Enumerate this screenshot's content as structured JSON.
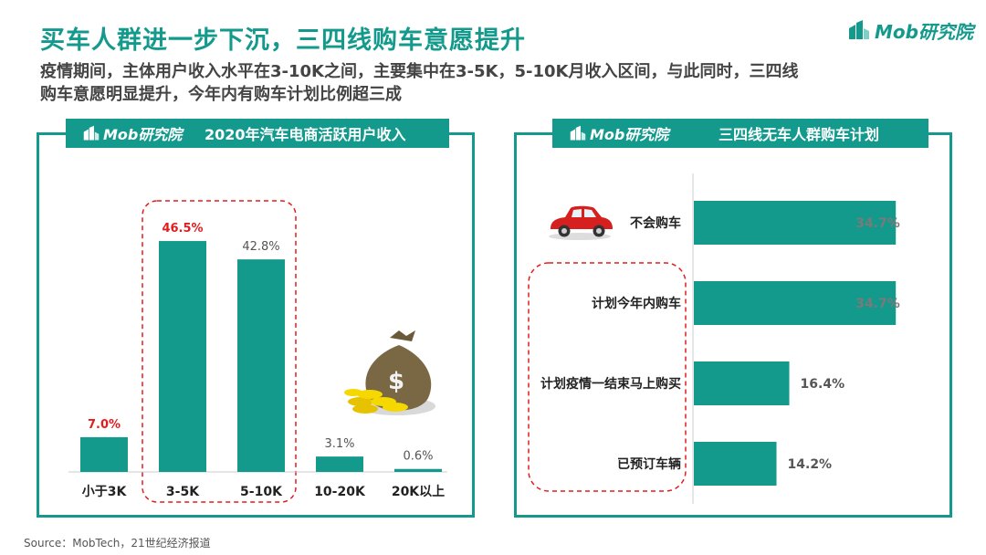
{
  "header": {
    "title": "买车人群进一步下沉，三四线购车意愿提升",
    "brand": "Mob研究院",
    "subtitle_line1": "疫情期间，主体用户收入水平在3-10K之间，主要集中在3-5K，5-10K月收入区间，与此同时，三四线",
    "subtitle_line2": "购车意愿明显提升，今年内有购车计划比例超三成"
  },
  "left_panel": {
    "logo": "Mob研究院",
    "title": "2020年汽车电商活跃用户收入"
  },
  "right_panel": {
    "logo": "Mob研究院",
    "title": "三四线无车人群购车计划"
  },
  "source": "Source：MobTech，21世纪经济报道",
  "colors": {
    "teal": "#139a8c",
    "highlight_label": "#e21d1d",
    "normal_label": "#555555",
    "dash": "#e21d1d"
  },
  "icons": [
    "money-bag-icon",
    "red-car-icon",
    "brand-logo-icon"
  ],
  "chart_data": [
    {
      "type": "bar",
      "title": "2020年汽车电商活跃用户收入",
      "categories": [
        "小于3K",
        "3-5K",
        "5-10K",
        "10-20K",
        "20K以上"
      ],
      "values": [
        7.0,
        46.5,
        42.8,
        3.1,
        0.6
      ],
      "value_labels": [
        "7.0%",
        "46.5%",
        "42.8%",
        "3.1%",
        "0.6%"
      ],
      "highlighted": [
        true,
        true,
        false,
        false,
        false
      ],
      "ylim": [
        0,
        50
      ],
      "grid": false,
      "xlabel": "",
      "ylabel": ""
    },
    {
      "type": "bar",
      "orientation": "horizontal",
      "title": "三四线无车人群购车计划",
      "categories": [
        "不会购车",
        "计划今年内购车",
        "计划疫情一结束马上购买",
        "已预订车辆"
      ],
      "values": [
        34.7,
        34.7,
        16.4,
        14.2
      ],
      "value_labels": [
        "34.7%",
        "34.7%",
        "16.4%",
        "14.2%"
      ],
      "xlim": [
        0,
        40
      ],
      "grid": false,
      "xlabel": "",
      "ylabel": ""
    }
  ]
}
